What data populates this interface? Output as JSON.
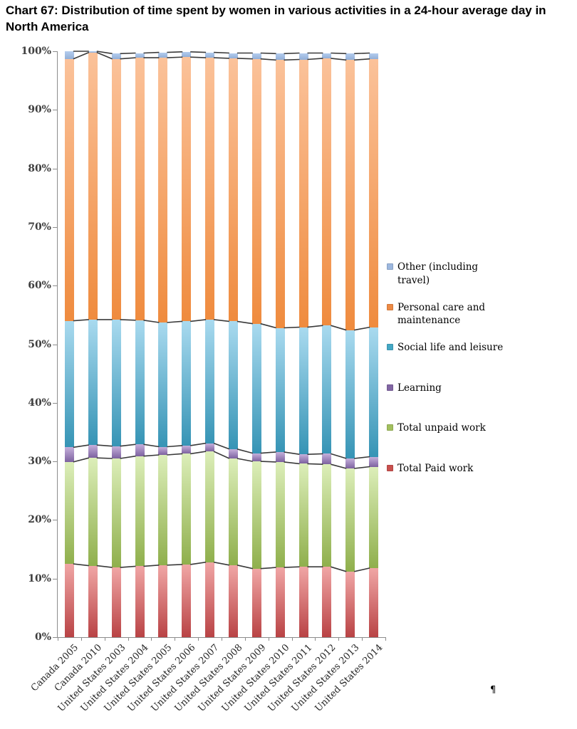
{
  "title": "Chart 67: Distribution of time spent by women in various activities in a 24-hour average day in North America",
  "pilcrow": "¶",
  "chart_data": {
    "type": "bar",
    "variant": "100%-stacked-column",
    "title": "Chart 67: Distribution of time spent by women in various activities in a 24-hour average day in North America",
    "xlabel": "",
    "ylabel": "",
    "ylim": [
      0,
      100
    ],
    "y_ticks": [
      "0%",
      "10%",
      "20%",
      "30%",
      "40%",
      "50%",
      "60%",
      "70%",
      "80%",
      "90%",
      "100%"
    ],
    "gridlines": false,
    "series_lines": true,
    "legend_position": "right",
    "categories": [
      "Canada 2005",
      "Canada 2010",
      "United States 2003",
      "United States 2004",
      "United States 2005",
      "United States 2006",
      "United States 2007",
      "United States 2008",
      "United States 2009",
      "United States 2010",
      "United States 2011",
      "United States 2012",
      "United States 2013",
      "United States 2014"
    ],
    "series": [
      {
        "name": "Total Paid work",
        "legend_color": "#C9504E",
        "gradient": [
          "#F0A6A5",
          "#B94345"
        ],
        "values": [
          12.5,
          12.2,
          11.9,
          12.1,
          12.3,
          12.4,
          12.8,
          12.3,
          11.7,
          11.9,
          12.0,
          12.0,
          11.2,
          11.8
        ]
      },
      {
        "name": "Total unpaid work",
        "legend_color": "#A2C05E",
        "gradient": [
          "#DCEEB9",
          "#8FAF4C"
        ],
        "values": [
          17.4,
          18.4,
          18.6,
          18.8,
          18.8,
          18.9,
          18.9,
          18.2,
          18.3,
          18.0,
          17.6,
          17.5,
          17.6,
          17.3
        ]
      },
      {
        "name": "Learning",
        "legend_color": "#8266A4",
        "gradient": [
          "#C5B0DB",
          "#7D62A0"
        ],
        "values": [
          2.5,
          2.2,
          2.1,
          2.0,
          1.4,
          1.4,
          1.4,
          1.6,
          1.4,
          1.7,
          1.6,
          1.8,
          1.7,
          1.7
        ]
      },
      {
        "name": "Social life and leisure",
        "legend_color": "#44A8C5",
        "gradient": [
          "#A9DAEF",
          "#3694B5"
        ],
        "values": [
          21.6,
          21.4,
          21.6,
          21.2,
          21.2,
          21.2,
          21.1,
          21.8,
          22.1,
          21.2,
          21.7,
          21.9,
          21.9,
          22.1
        ]
      },
      {
        "name": "Personal care and maintenance",
        "legend_color": "#ED8A45",
        "gradient": [
          "#FBC29A",
          "#EF8B3E"
        ],
        "values": [
          44.7,
          45.6,
          44.5,
          44.8,
          45.2,
          45.1,
          44.7,
          44.9,
          45.2,
          45.7,
          45.7,
          45.6,
          46.1,
          45.8
        ]
      },
      {
        "name": "Other (including travel)",
        "legend_color": "#9DB8DF",
        "gradient": [
          "#B3CCEE",
          "#93AFD7"
        ],
        "values": [
          1.3,
          0.2,
          0.9,
          0.8,
          0.9,
          0.9,
          0.9,
          0.9,
          1.0,
          1.1,
          1.1,
          0.9,
          1.1,
          1.0
        ]
      }
    ],
    "legend_items": [
      {
        "label": "Other (including travel)",
        "color": "#9DB8DF"
      },
      {
        "label": "Personal care and maintenance",
        "color": "#ED8A45"
      },
      {
        "label": "Social life and leisure",
        "color": "#44A8C5"
      },
      {
        "label": "Learning",
        "color": "#8266A4"
      },
      {
        "label": "Total unpaid work",
        "color": "#A2C05E"
      },
      {
        "label": "Total Paid work",
        "color": "#C9504E"
      }
    ],
    "line_color": "#3a3a3a",
    "axis_color": "#8c8c8c"
  }
}
